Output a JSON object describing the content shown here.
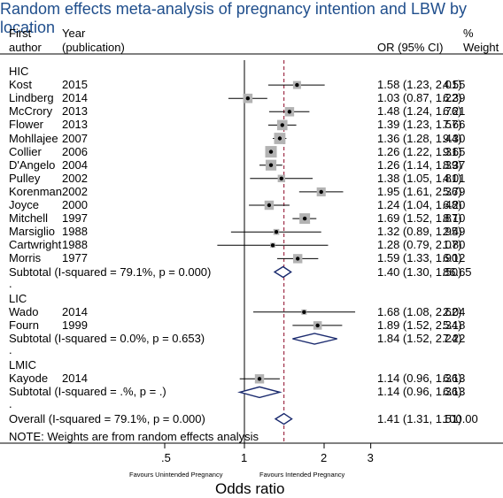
{
  "title": "Random effects meta-analysis of pregnancy intention and LBW by location",
  "header": {
    "col1": [
      "First",
      "author"
    ],
    "col2": [
      "Year",
      "(publication)"
    ],
    "col3": "OR (95% CI)",
    "col4": [
      "%",
      "Weight"
    ]
  },
  "note": "NOTE: Weights are from random effects analysis",
  "footer": {
    "left_label": "Favours Unintended Pregnancy",
    "right_label": "Favours Intended Pregnancy",
    "xlabel": "Odds ratio"
  },
  "chart_data": {
    "type": "forest",
    "title": "Random effects meta-analysis of pregnancy intention and LBW by location",
    "xlabel": "Odds ratio",
    "x_scale": "log",
    "x_ticks": [
      0.5,
      1,
      2,
      3
    ],
    "x_tick_labels": [
      ".5",
      "1",
      "2",
      "3"
    ],
    "null_line": 1,
    "overall_line": 1.41,
    "groups": [
      {
        "name": "HIC",
        "studies": [
          {
            "author": "Kost",
            "year": "2015",
            "or": 1.58,
            "lo": 1.23,
            "hi": 2.01,
            "ci": "1.58 (1.23, 2.01)",
            "weight": "4.55"
          },
          {
            "author": "Lindberg",
            "year": "2014",
            "or": 1.03,
            "lo": 0.87,
            "hi": 1.22,
            "ci": "1.03 (0.87, 1.22)",
            "weight": "6.39"
          },
          {
            "author": "McCrory",
            "year": "2013",
            "or": 1.48,
            "lo": 1.24,
            "hi": 1.76,
            "ci": "1.48 (1.24, 1.76)",
            "weight": "6.21"
          },
          {
            "author": "Flower",
            "year": "2013",
            "or": 1.39,
            "lo": 1.23,
            "hi": 1.57,
            "ci": "1.39 (1.23, 1.57)",
            "weight": "7.66"
          },
          {
            "author": "Mohllajee",
            "year": "2007",
            "or": 1.36,
            "lo": 1.28,
            "hi": 1.44,
            "ci": "1.36 (1.28, 1.44)",
            "weight": "9.30"
          },
          {
            "author": "Collier",
            "year": "2006",
            "or": 1.26,
            "lo": 1.22,
            "hi": 1.31,
            "ci": "1.26 (1.22, 1.31)",
            "weight": "9.65"
          },
          {
            "author": "D'Angelo",
            "year": "2004",
            "or": 1.26,
            "lo": 1.14,
            "hi": 1.39,
            "ci": "1.26 (1.14, 1.39)",
            "weight": "8.37"
          },
          {
            "author": "Pulley",
            "year": "2002",
            "or": 1.38,
            "lo": 1.05,
            "hi": 1.81,
            "ci": "1.38 (1.05, 1.81)",
            "weight": "4.01"
          },
          {
            "author": "Korenman",
            "year": "2002",
            "or": 1.95,
            "lo": 1.61,
            "hi": 2.36,
            "ci": "1.95 (1.61, 2.36)",
            "weight": "5.79"
          },
          {
            "author": "Joyce",
            "year": "2000",
            "or": 1.24,
            "lo": 1.04,
            "hi": 1.48,
            "ci": "1.24 (1.04, 1.48)",
            "weight": "6.20"
          },
          {
            "author": "Mitchell",
            "year": "1997",
            "or": 1.69,
            "lo": 1.52,
            "hi": 1.87,
            "ci": "1.69 (1.52, 1.87)",
            "weight": "8.10"
          },
          {
            "author": "Marsiglio",
            "year": "1988",
            "or": 1.32,
            "lo": 0.89,
            "hi": 1.95,
            "ci": "1.32 (0.89, 1.95)",
            "weight": "2.49"
          },
          {
            "author": "Cartwright",
            "year": "1988",
            "or": 1.28,
            "lo": 0.79,
            "hi": 2.07,
            "ci": "1.28 (0.79, 2.07)",
            "weight": "1.80"
          },
          {
            "author": "Morris",
            "year": "1977",
            "or": 1.59,
            "lo": 1.33,
            "hi": 1.9,
            "ci": "1.59 (1.33, 1.90)",
            "weight": "6.12"
          }
        ],
        "subtotal": {
          "label": "Subtotal  (I-squared = 79.1%, p = 0.000)",
          "or": 1.4,
          "lo": 1.3,
          "hi": 1.5,
          "ci": "1.40 (1.30, 1.50)",
          "weight": "86.65"
        }
      },
      {
        "name": "LIC",
        "studies": [
          {
            "author": "Wado",
            "year": "2014",
            "or": 1.68,
            "lo": 1.08,
            "hi": 2.62,
            "ci": "1.68 (1.08, 2.62)",
            "weight": "2.04"
          },
          {
            "author": "Fourn",
            "year": "1999",
            "or": 1.89,
            "lo": 1.52,
            "hi": 2.34,
            "ci": "1.89 (1.52, 2.34)",
            "weight": "5.18"
          }
        ],
        "subtotal": {
          "label": "Subtotal  (I-squared = 0.0%, p = 0.653)",
          "or": 1.84,
          "lo": 1.52,
          "hi": 2.24,
          "ci": "1.84 (1.52, 2.24)",
          "weight": "7.22"
        }
      },
      {
        "name": "LMIC",
        "studies": [
          {
            "author": "Kayode",
            "year": "2014",
            "or": 1.14,
            "lo": 0.96,
            "hi": 1.36,
            "ci": "1.14 (0.96, 1.36)",
            "weight": "6.13"
          }
        ],
        "subtotal": {
          "label": "Subtotal  (I-squared = .%, p = .)",
          "or": 1.14,
          "lo": 0.96,
          "hi": 1.36,
          "ci": "1.14 (0.96, 1.36)",
          "weight": "6.13"
        }
      }
    ],
    "overall": {
      "label": "Overall  (I-squared = 79.1%, p = 0.000)",
      "or": 1.41,
      "lo": 1.31,
      "hi": 1.51,
      "ci": "1.41 (1.31, 1.51)",
      "weight": "100.00"
    },
    "colors": {
      "box": "#b3b3b3",
      "diamond": "#1a2a6e",
      "overall_line": "#a0304a",
      "title": "#1f4e8c"
    }
  }
}
